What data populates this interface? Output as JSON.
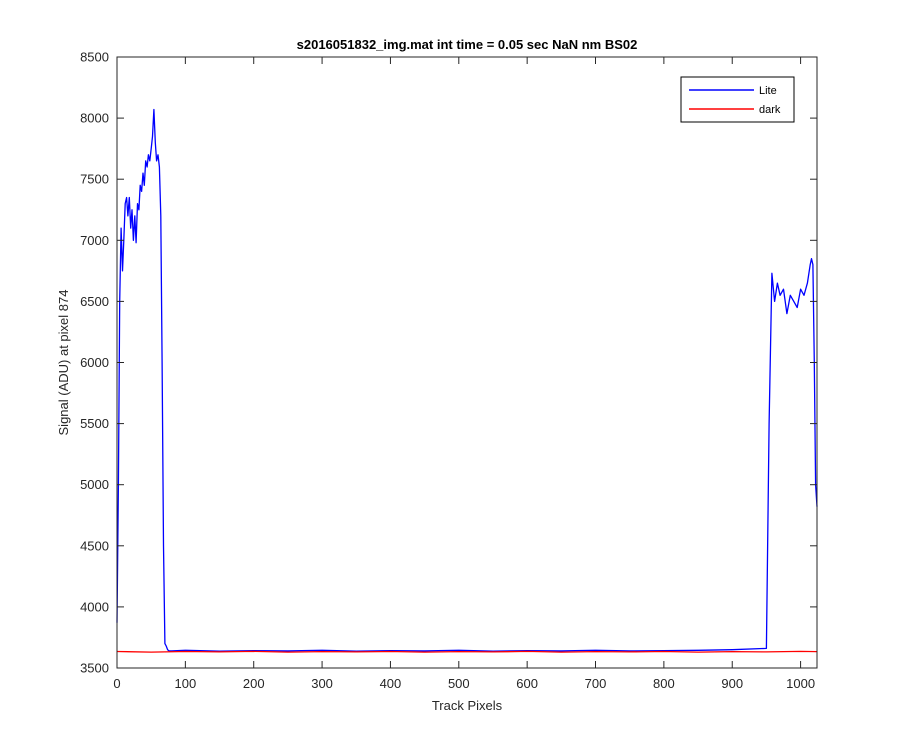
{
  "chart_data": {
    "type": "line",
    "title": "s2016051832_img.mat int time = 0.05 sec  NaN nm BS02",
    "xlabel": "Track Pixels",
    "ylabel": "Signal (ADU) at pixel 874",
    "xlim": [
      0,
      1024
    ],
    "ylim": [
      3500,
      8500
    ],
    "xticks": [
      0,
      100,
      200,
      300,
      400,
      500,
      600,
      700,
      800,
      900,
      1000
    ],
    "yticks": [
      3500,
      4000,
      4500,
      5000,
      5500,
      6000,
      6500,
      7000,
      7500,
      8000,
      8500
    ],
    "grid": false,
    "legend_position": "top-right",
    "colors": {
      "Lite": "#0000ff",
      "dark": "#ff0000",
      "axes": "#262626"
    },
    "series": [
      {
        "name": "Lite",
        "x": [
          0,
          2,
          4,
          6,
          8,
          10,
          12,
          14,
          16,
          18,
          20,
          22,
          24,
          26,
          28,
          30,
          32,
          34,
          36,
          38,
          40,
          42,
          44,
          46,
          48,
          50,
          52,
          54,
          56,
          58,
          60,
          62,
          64,
          66,
          68,
          70,
          72,
          74,
          76,
          80,
          100,
          150,
          200,
          250,
          300,
          350,
          400,
          450,
          500,
          550,
          600,
          650,
          700,
          750,
          800,
          850,
          900,
          950,
          954,
          958,
          962,
          966,
          970,
          975,
          980,
          985,
          990,
          995,
          1000,
          1005,
          1010,
          1014,
          1016,
          1018,
          1020,
          1022,
          1024
        ],
        "values": [
          3870,
          5000,
          6500,
          7100,
          6750,
          7000,
          7300,
          7350,
          7200,
          7350,
          7100,
          7250,
          7000,
          7200,
          6980,
          7300,
          7250,
          7450,
          7400,
          7550,
          7450,
          7650,
          7600,
          7700,
          7650,
          7750,
          7850,
          8070,
          7800,
          7650,
          7700,
          7600,
          7200,
          6000,
          4500,
          3700,
          3680,
          3650,
          3640,
          3640,
          3645,
          3638,
          3642,
          3640,
          3645,
          3638,
          3642,
          3640,
          3645,
          3638,
          3642,
          3640,
          3645,
          3640,
          3642,
          3645,
          3650,
          3660,
          5500,
          6730,
          6500,
          6650,
          6550,
          6600,
          6400,
          6550,
          6500,
          6450,
          6600,
          6550,
          6650,
          6800,
          6850,
          6800,
          6000,
          5000,
          4820
        ]
      },
      {
        "name": "dark",
        "x": [
          0,
          50,
          100,
          150,
          200,
          250,
          300,
          350,
          400,
          450,
          500,
          550,
          600,
          650,
          700,
          750,
          800,
          850,
          900,
          950,
          1000,
          1024
        ],
        "values": [
          3635,
          3630,
          3635,
          3632,
          3636,
          3630,
          3634,
          3632,
          3635,
          3630,
          3634,
          3632,
          3636,
          3630,
          3634,
          3632,
          3635,
          3630,
          3634,
          3632,
          3636,
          3634
        ]
      }
    ]
  }
}
